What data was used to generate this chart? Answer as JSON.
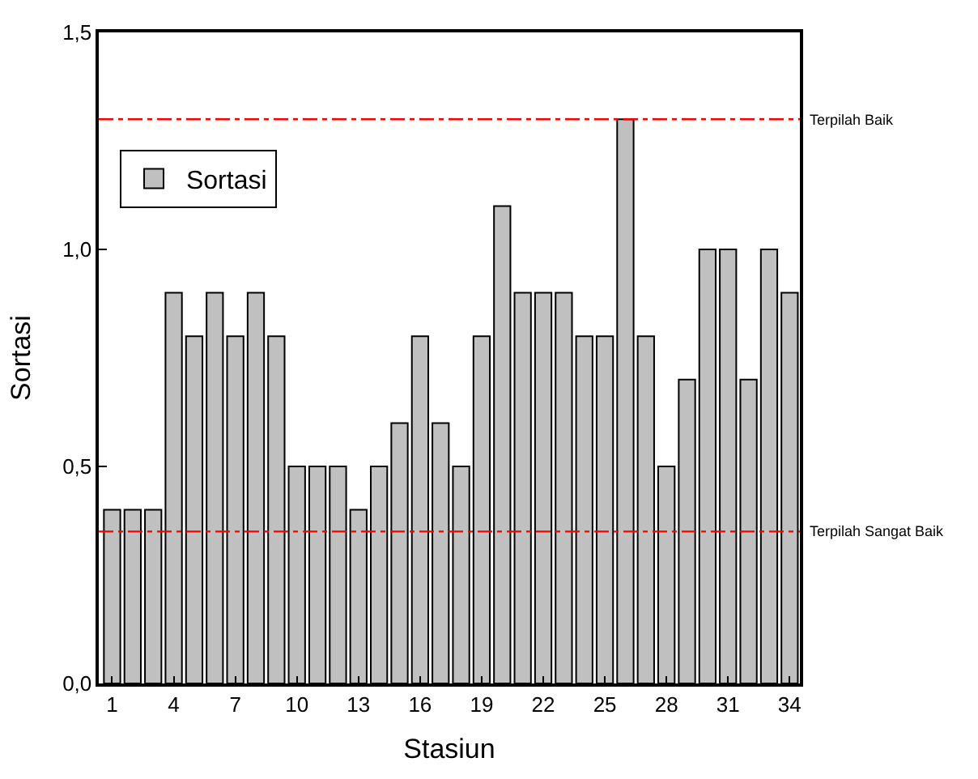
{
  "chart_data": {
    "type": "bar",
    "xlabel": "Stasiun",
    "ylabel": "Sortasi",
    "x": [
      1,
      2,
      3,
      4,
      5,
      6,
      7,
      8,
      9,
      10,
      11,
      12,
      13,
      14,
      15,
      16,
      17,
      18,
      19,
      20,
      21,
      22,
      23,
      24,
      25,
      26,
      27,
      28,
      29,
      30,
      31,
      32,
      33,
      34
    ],
    "series": [
      {
        "name": "Sortasi",
        "color": "#c0c0c0",
        "values": [
          0.4,
          0.4,
          0.4,
          0.9,
          0.8,
          0.9,
          0.8,
          0.9,
          0.8,
          0.5,
          0.5,
          0.5,
          0.4,
          0.5,
          0.6,
          0.8,
          0.6,
          0.5,
          0.8,
          1.1,
          0.9,
          0.9,
          0.9,
          0.8,
          0.8,
          1.3,
          0.8,
          0.5,
          0.7,
          1.0,
          1.0,
          0.7,
          1.0,
          0.9
        ]
      }
    ],
    "xlim": [
      0.35,
      34.5
    ],
    "xticks": [
      1,
      4,
      7,
      10,
      13,
      16,
      19,
      22,
      25,
      28,
      31,
      34
    ],
    "ylim": [
      0,
      1.5
    ],
    "yticks": [
      {
        "value": 0,
        "label": "0,0"
      },
      {
        "value": 0.5,
        "label": "0,5"
      },
      {
        "value": 1,
        "label": "1,0"
      },
      {
        "value": 1.5,
        "label": "1,5"
      }
    ],
    "ref_lines": [
      {
        "axis": "y",
        "value": 1.3,
        "label": "Terpilah Baik",
        "color": "#ff0000",
        "line_style": "dashdot"
      },
      {
        "axis": "y",
        "value": 0.35,
        "label": "Terpilah Sangat Baik",
        "color": "#ff0000",
        "line_style": "dashdot"
      }
    ],
    "legend": "top left"
  }
}
